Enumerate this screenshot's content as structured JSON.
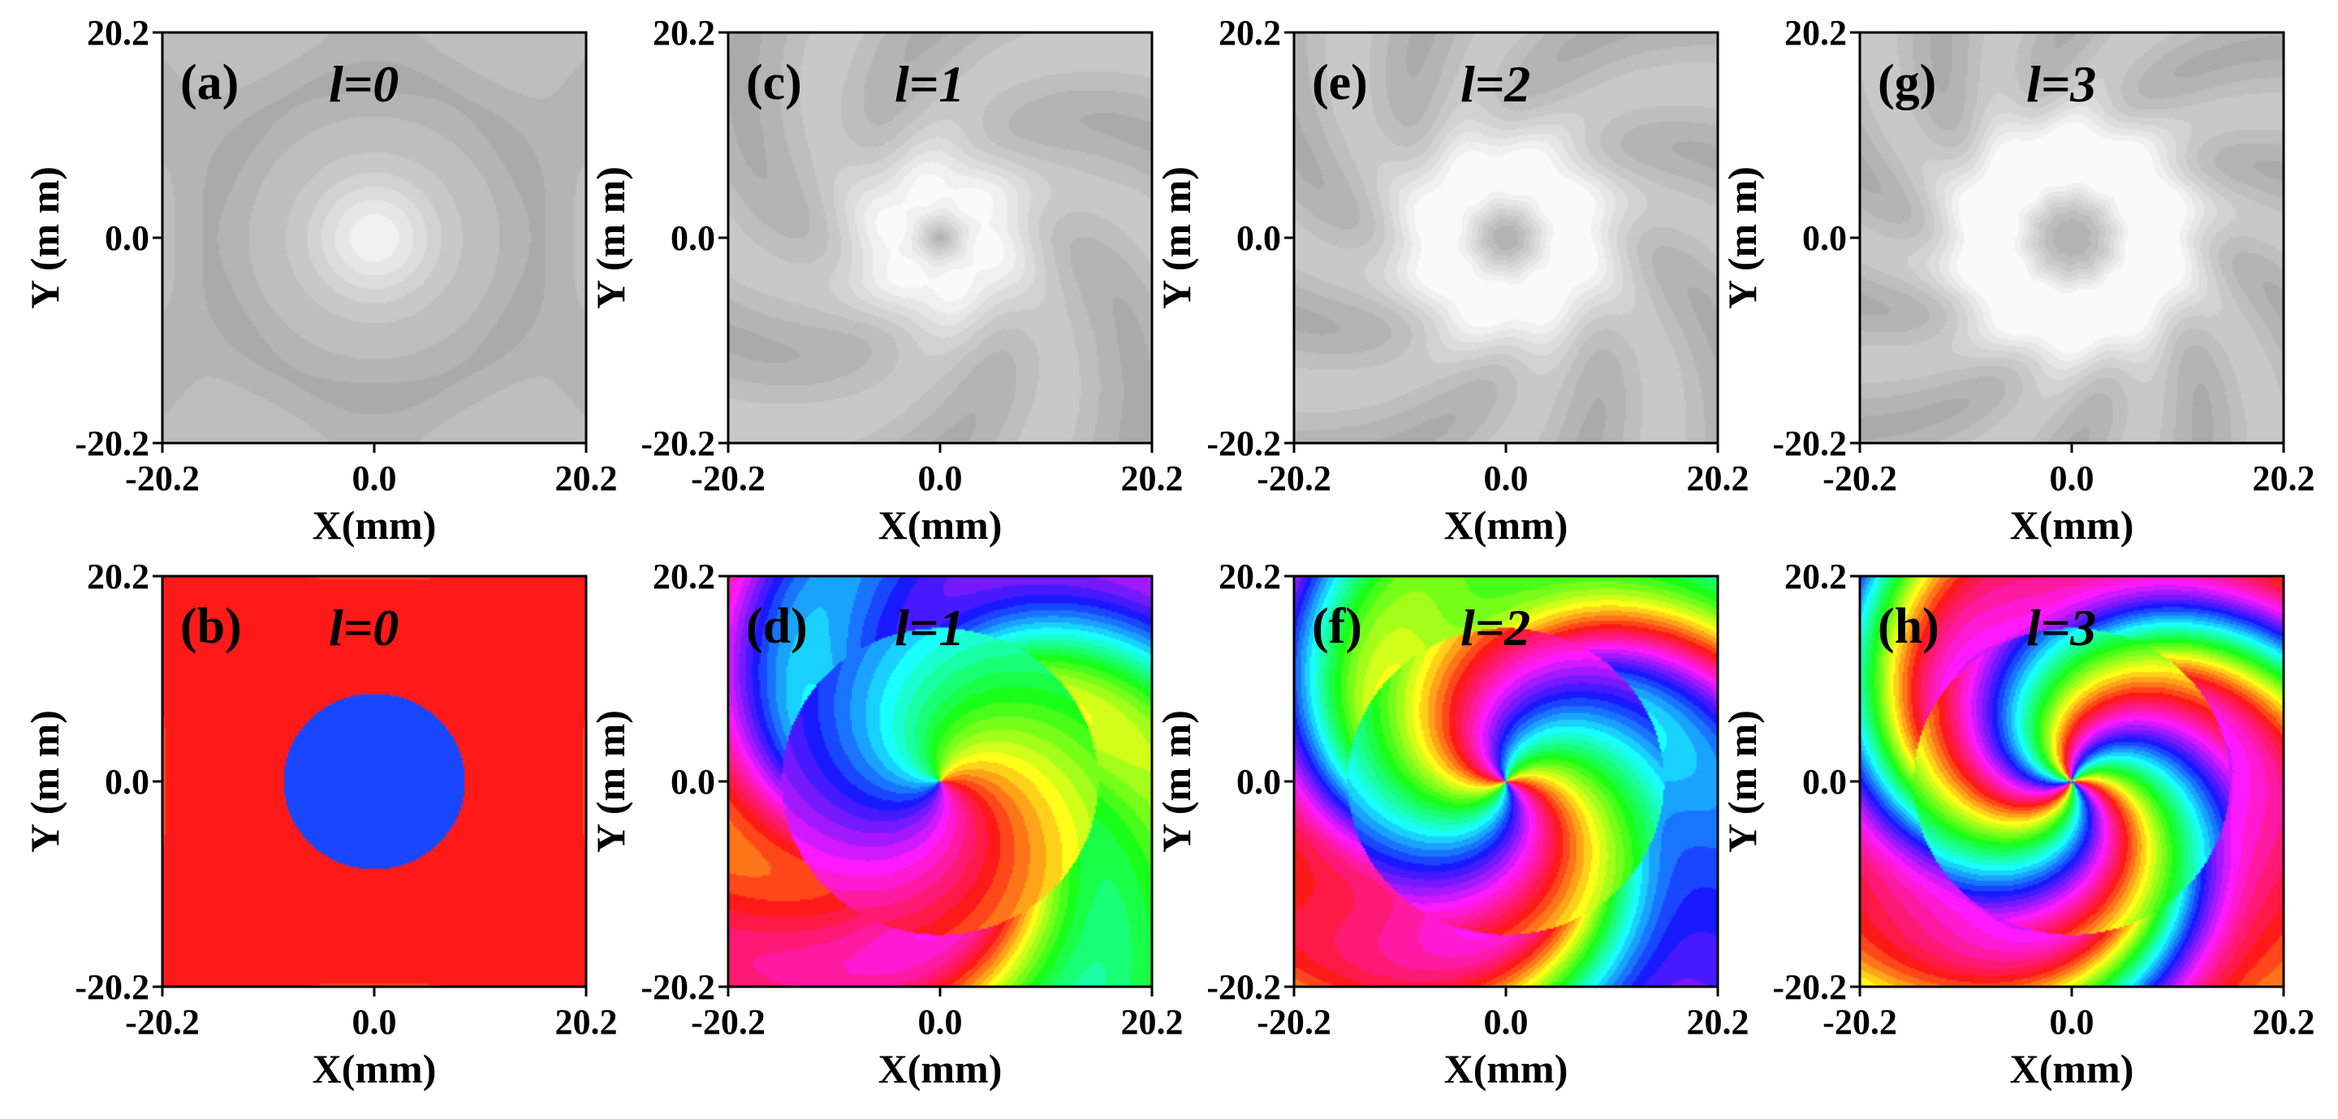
{
  "chart_data": [
    {
      "type": "heatmap",
      "kind": "intensity",
      "panel_label": "(a)",
      "mode_label": "l=0",
      "l": 0,
      "xlabel": "X(mm)",
      "ylabel": "Y (m m)",
      "xlim": [
        -20.2,
        20.2
      ],
      "ylim": [
        -20.2,
        20.2
      ],
      "xticks": [
        "-20.2",
        "0.0",
        "20.2"
      ],
      "yticks": [
        "20.2",
        "0.0",
        "-20.2"
      ],
      "colormap": "grayscale"
    },
    {
      "type": "heatmap",
      "kind": "intensity",
      "panel_label": "(c)",
      "mode_label": "l=1",
      "l": 1,
      "xlabel": "X(mm)",
      "ylabel": "Y (m m)",
      "xlim": [
        -20.2,
        20.2
      ],
      "ylim": [
        -20.2,
        20.2
      ],
      "xticks": [
        "-20.2",
        "0.0",
        "20.2"
      ],
      "yticks": [
        "20.2",
        "0.0",
        "-20.2"
      ],
      "colormap": "grayscale"
    },
    {
      "type": "heatmap",
      "kind": "intensity",
      "panel_label": "(e)",
      "mode_label": "l=2",
      "l": 2,
      "xlabel": "X(mm)",
      "ylabel": "Y (m m)",
      "xlim": [
        -20.2,
        20.2
      ],
      "ylim": [
        -20.2,
        20.2
      ],
      "xticks": [
        "-20.2",
        "0.0",
        "20.2"
      ],
      "yticks": [
        "20.2",
        "0.0",
        "-20.2"
      ],
      "colormap": "grayscale"
    },
    {
      "type": "heatmap",
      "kind": "intensity",
      "panel_label": "(g)",
      "mode_label": "l=3",
      "l": 3,
      "xlabel": "X(mm)",
      "ylabel": "Y (m m)",
      "xlim": [
        -20.2,
        20.2
      ],
      "ylim": [
        -20.2,
        20.2
      ],
      "xticks": [
        "-20.2",
        "0.0",
        "20.2"
      ],
      "yticks": [
        "20.2",
        "0.0",
        "-20.2"
      ],
      "colormap": "grayscale"
    },
    {
      "type": "heatmap",
      "kind": "phase",
      "panel_label": "(b)",
      "mode_label": "l=0",
      "l": 0,
      "xlabel": "X(mm)",
      "ylabel": "Y (m m)",
      "xlim": [
        -20.2,
        20.2
      ],
      "ylim": [
        -20.2,
        20.2
      ],
      "xticks": [
        "-20.2",
        "0.0",
        "20.2"
      ],
      "yticks": [
        "20.2",
        "0.0",
        "-20.2"
      ],
      "colormap": "hue"
    },
    {
      "type": "heatmap",
      "kind": "phase",
      "panel_label": "(d)",
      "mode_label": "l=1",
      "l": 1,
      "xlabel": "X(mm)",
      "ylabel": "Y (m m)",
      "xlim": [
        -20.2,
        20.2
      ],
      "ylim": [
        -20.2,
        20.2
      ],
      "xticks": [
        "-20.2",
        "0.0",
        "20.2"
      ],
      "yticks": [
        "20.2",
        "0.0",
        "-20.2"
      ],
      "colormap": "hue"
    },
    {
      "type": "heatmap",
      "kind": "phase",
      "panel_label": "(f)",
      "mode_label": "l=2",
      "l": 2,
      "xlabel": "X(mm)",
      "ylabel": "Y (m m)",
      "xlim": [
        -20.2,
        20.2
      ],
      "ylim": [
        -20.2,
        20.2
      ],
      "xticks": [
        "-20.2",
        "0.0",
        "20.2"
      ],
      "yticks": [
        "20.2",
        "0.0",
        "-20.2"
      ],
      "colormap": "hue"
    },
    {
      "type": "heatmap",
      "kind": "phase",
      "panel_label": "(h)",
      "mode_label": "l=3",
      "l": 3,
      "xlabel": "X(mm)",
      "ylabel": "Y (m m)",
      "xlim": [
        -20.2,
        20.2
      ],
      "ylim": [
        -20.2,
        20.2
      ],
      "xticks": [
        "-20.2",
        "0.0",
        "20.2"
      ],
      "yticks": [
        "20.2",
        "0.0",
        "-20.2"
      ],
      "colormap": "hue"
    }
  ]
}
